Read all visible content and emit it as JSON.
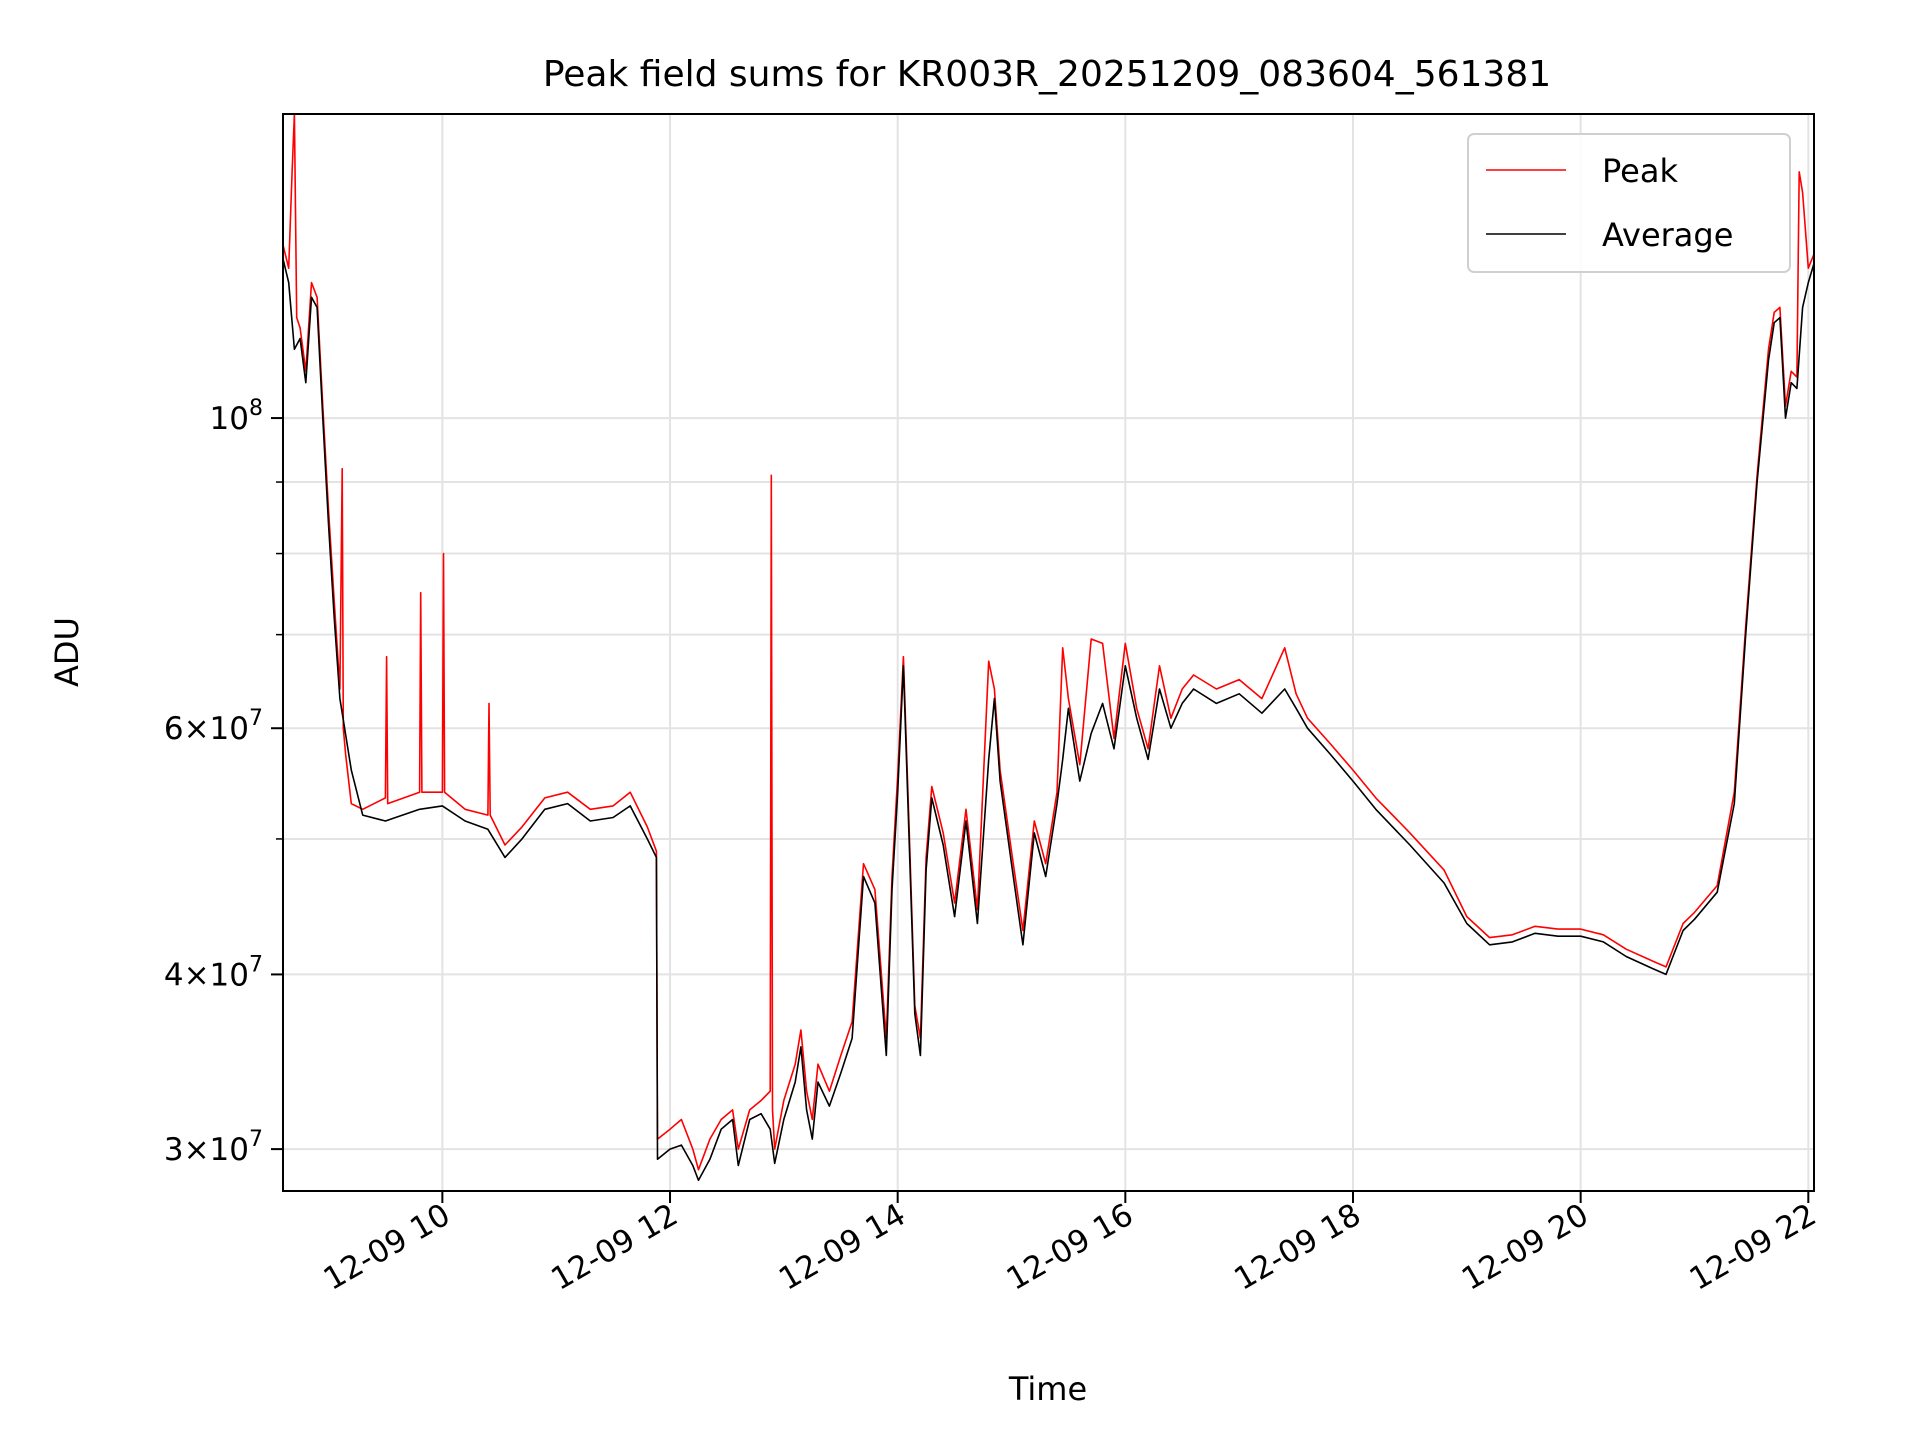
{
  "chart_data": {
    "type": "line",
    "title": "Peak field sums for KR003R_20251209_083604_561381",
    "xlabel": "Time",
    "ylabel": "ADU",
    "yscale": "log",
    "grid": true,
    "legend_position": "top-right",
    "xlim_hours": [
      8.6,
      22.05
    ],
    "ylim": [
      28000000,
      165000000
    ],
    "x_ticks": [
      {
        "hour": 10,
        "label": "12-09 10"
      },
      {
        "hour": 12,
        "label": "12-09 12"
      },
      {
        "hour": 14,
        "label": "12-09 14"
      },
      {
        "hour": 16,
        "label": "12-09 16"
      },
      {
        "hour": 18,
        "label": "12-09 18"
      },
      {
        "hour": 20,
        "label": "12-09 20"
      },
      {
        "hour": 22,
        "label": "12-09 22"
      }
    ],
    "y_ticks": [
      {
        "value": 30000000,
        "mantissa": "3",
        "exp": "7"
      },
      {
        "value": 40000000,
        "mantissa": "4",
        "exp": "7"
      },
      {
        "value": 60000000,
        "mantissa": "6",
        "exp": "7"
      },
      {
        "value": 100000000,
        "mantissa": "",
        "exp": "8"
      }
    ],
    "y_minor_ticks": [
      50000000,
      70000000,
      80000000,
      90000000
    ],
    "legend": [
      {
        "label": "Peak",
        "color": "#ff0000"
      },
      {
        "label": "Average",
        "color": "#000000"
      }
    ],
    "series": [
      {
        "name": "Average",
        "color": "#000000",
        "x_hours": [
          8.6,
          8.65,
          8.7,
          8.75,
          8.8,
          8.85,
          8.9,
          8.95,
          9.0,
          9.05,
          9.1,
          9.2,
          9.3,
          9.5,
          9.8,
          10.0,
          10.2,
          10.4,
          10.55,
          10.7,
          10.9,
          11.1,
          11.3,
          11.5,
          11.65,
          11.8,
          11.88,
          11.89,
          12.0,
          12.1,
          12.2,
          12.25,
          12.35,
          12.45,
          12.55,
          12.6,
          12.7,
          12.8,
          12.88,
          12.92,
          13.0,
          13.1,
          13.15,
          13.2,
          13.25,
          13.3,
          13.4,
          13.5,
          13.6,
          13.7,
          13.8,
          13.9,
          13.95,
          14.0,
          14.05,
          14.1,
          14.15,
          14.2,
          14.25,
          14.3,
          14.4,
          14.5,
          14.6,
          14.7,
          14.8,
          14.85,
          14.9,
          15.0,
          15.1,
          15.2,
          15.3,
          15.4,
          15.45,
          15.5,
          15.6,
          15.7,
          15.8,
          15.9,
          16.0,
          16.1,
          16.2,
          16.3,
          16.4,
          16.5,
          16.6,
          16.8,
          17.0,
          17.2,
          17.4,
          17.5,
          17.6,
          17.8,
          18.0,
          18.2,
          18.5,
          18.8,
          19.0,
          19.2,
          19.4,
          19.6,
          19.8,
          20.0,
          20.2,
          20.4,
          20.6,
          20.75,
          20.9,
          21.0,
          21.2,
          21.35,
          21.45,
          21.55,
          21.65,
          21.7,
          21.75,
          21.8,
          21.85,
          21.9,
          21.95,
          22.0,
          22.05
        ],
        "values": [
          130000000,
          125000000,
          112000000,
          114000000,
          106000000,
          122000000,
          120000000,
          100000000,
          84000000,
          72000000,
          63000000,
          56000000,
          52000000,
          51500000,
          52500000,
          52800000,
          51500000,
          50800000,
          48500000,
          50000000,
          52500000,
          53000000,
          51500000,
          51800000,
          52800000,
          50000000,
          48500000,
          29500000,
          30000000,
          30200000,
          29200000,
          28500000,
          29500000,
          31000000,
          31500000,
          29200000,
          31500000,
          31800000,
          31000000,
          29300000,
          31500000,
          33500000,
          35500000,
          32000000,
          30500000,
          33500000,
          32200000,
          34000000,
          36000000,
          47000000,
          45000000,
          35000000,
          46000000,
          54000000,
          66500000,
          50000000,
          37500000,
          35000000,
          47500000,
          53500000,
          49500000,
          44000000,
          51500000,
          43500000,
          57000000,
          63000000,
          55000000,
          48000000,
          42000000,
          50500000,
          47000000,
          53000000,
          57000000,
          62000000,
          55000000,
          59500000,
          62500000,
          58000000,
          66500000,
          61000000,
          57000000,
          64000000,
          60000000,
          62500000,
          64000000,
          62500000,
          63500000,
          61500000,
          64000000,
          62000000,
          60000000,
          57500000,
          55000000,
          52500000,
          49500000,
          46500000,
          43500000,
          42000000,
          42200000,
          42800000,
          42600000,
          42600000,
          42200000,
          41200000,
          40500000,
          40000000,
          43000000,
          43800000,
          45800000,
          53000000,
          70000000,
          90000000,
          110000000,
          117000000,
          118000000,
          100000000,
          106000000,
          105000000,
          120000000,
          125000000,
          129000000
        ]
      },
      {
        "name": "Peak",
        "color": "#ff0000",
        "x_hours": [
          8.6,
          8.65,
          8.68,
          8.7,
          8.72,
          8.75,
          8.8,
          8.85,
          8.9,
          8.95,
          9.0,
          9.05,
          9.1,
          9.12,
          9.13,
          9.15,
          9.2,
          9.3,
          9.5,
          9.51,
          9.52,
          9.8,
          9.81,
          9.82,
          10.0,
          10.01,
          10.02,
          10.2,
          10.4,
          10.41,
          10.42,
          10.55,
          10.7,
          10.9,
          11.1,
          11.3,
          11.5,
          11.65,
          11.8,
          11.88,
          11.89,
          12.0,
          12.1,
          12.2,
          12.25,
          12.35,
          12.45,
          12.55,
          12.6,
          12.7,
          12.8,
          12.88,
          12.89,
          12.9,
          12.92,
          13.0,
          13.1,
          13.15,
          13.2,
          13.25,
          13.3,
          13.4,
          13.5,
          13.6,
          13.7,
          13.8,
          13.9,
          13.95,
          14.0,
          14.05,
          14.1,
          14.15,
          14.2,
          14.25,
          14.3,
          14.4,
          14.5,
          14.6,
          14.7,
          14.8,
          14.85,
          14.9,
          15.0,
          15.1,
          15.2,
          15.3,
          15.4,
          15.45,
          15.5,
          15.6,
          15.7,
          15.8,
          15.9,
          16.0,
          16.1,
          16.2,
          16.3,
          16.4,
          16.5,
          16.6,
          16.8,
          17.0,
          17.2,
          17.4,
          17.5,
          17.6,
          17.8,
          18.0,
          18.2,
          18.5,
          18.8,
          19.0,
          19.2,
          19.4,
          19.6,
          19.8,
          20.0,
          20.2,
          20.4,
          20.6,
          20.75,
          20.9,
          21.0,
          21.2,
          21.35,
          21.45,
          21.55,
          21.65,
          21.7,
          21.75,
          21.8,
          21.85,
          21.9,
          21.92,
          21.95,
          22.0,
          22.05
        ],
        "values": [
          133000000,
          128000000,
          150000000,
          165000000,
          118000000,
          116000000,
          108000000,
          125000000,
          122000000,
          102000000,
          86000000,
          74000000,
          64000000,
          92000000,
          60000000,
          57500000,
          53000000,
          52500000,
          53500000,
          67500000,
          53000000,
          54000000,
          75000000,
          54000000,
          54000000,
          80000000,
          54000000,
          52500000,
          52000000,
          62500000,
          52000000,
          49500000,
          51000000,
          53500000,
          54000000,
          52500000,
          52800000,
          54000000,
          51000000,
          49000000,
          30500000,
          31000000,
          31500000,
          30000000,
          29000000,
          30500000,
          31500000,
          32000000,
          30000000,
          32000000,
          32500000,
          33000000,
          91000000,
          32000000,
          30000000,
          32500000,
          34500000,
          36500000,
          33000000,
          31500000,
          34500000,
          33000000,
          35000000,
          37000000,
          48000000,
          46000000,
          36000000,
          47000000,
          55500000,
          67500000,
          51000000,
          38000000,
          36000000,
          48500000,
          54500000,
          50500000,
          45000000,
          52500000,
          44500000,
          67000000,
          64000000,
          56000000,
          49000000,
          43000000,
          51500000,
          48000000,
          54000000,
          68500000,
          63000000,
          56500000,
          69500000,
          69000000,
          59000000,
          69000000,
          62000000,
          58000000,
          66500000,
          61000000,
          64000000,
          65500000,
          64000000,
          65000000,
          63000000,
          68500000,
          63500000,
          61000000,
          58500000,
          56000000,
          53500000,
          50500000,
          47500000,
          44000000,
          42500000,
          42700000,
          43300000,
          43100000,
          43100000,
          42700000,
          41700000,
          41000000,
          40500000,
          43500000,
          44300000,
          46300000,
          54000000,
          71000000,
          91000000,
          112000000,
          119000000,
          120000000,
          102000000,
          108000000,
          107000000,
          150000000,
          145000000,
          128000000,
          131000000
        ]
      }
    ]
  }
}
